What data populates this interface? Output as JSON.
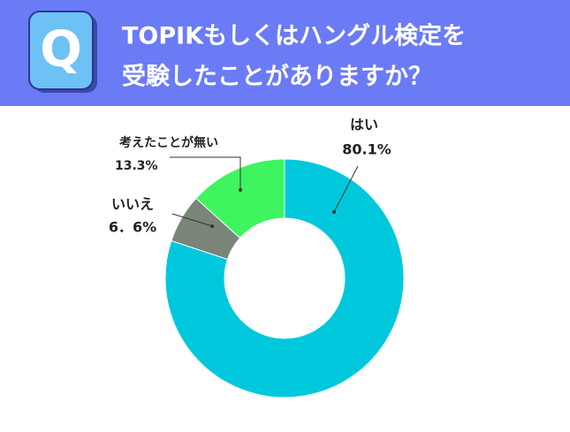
{
  "header_icon": "Q",
  "chart_data": {
    "type": "donut",
    "title": [
      "TOPIKもしくはハングル検定を",
      "受験したことがありますか？"
    ],
    "categories": [
      "はい",
      "いいえ",
      "考えたことが無い"
    ],
    "values": [
      80.1,
      6.6,
      13.3
    ],
    "value_labels": [
      "80.1%",
      "6．6%",
      "13.3%"
    ],
    "colors": [
      "#00c8dc",
      "#7a8478",
      "#3ef55f"
    ]
  }
}
